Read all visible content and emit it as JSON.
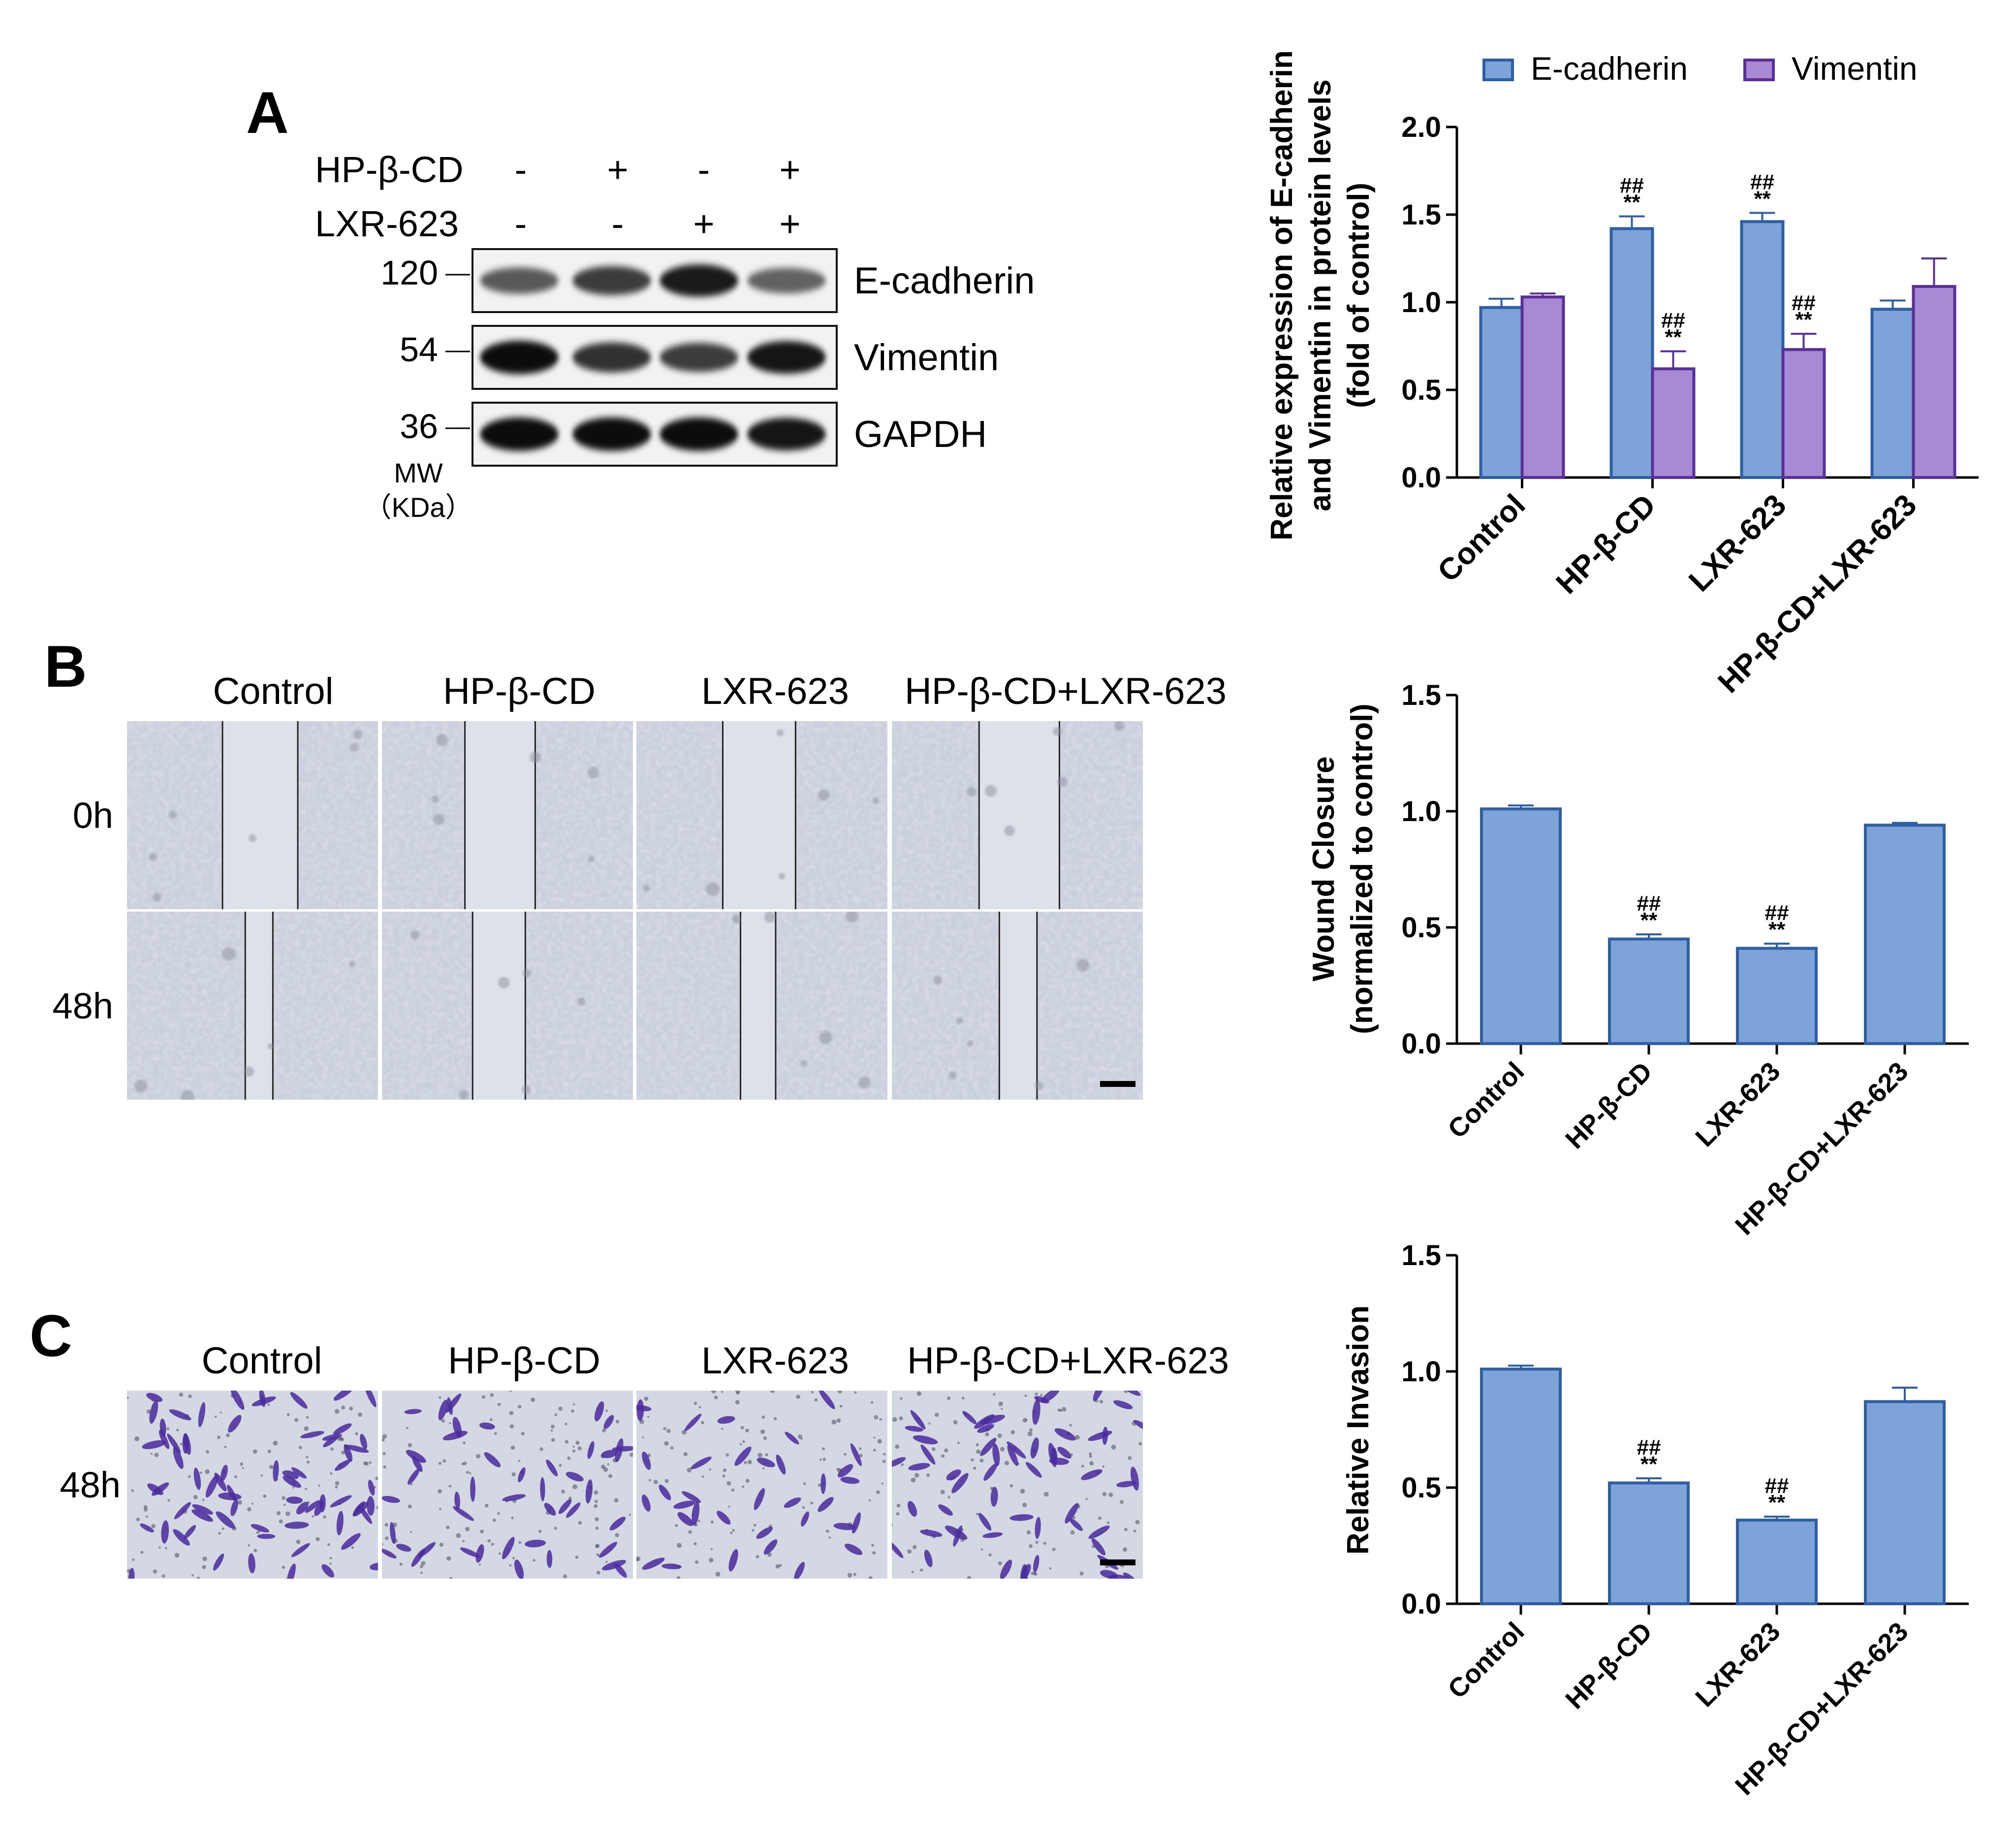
{
  "panel_labels": [
    "A",
    "B",
    "C"
  ],
  "western_blot": {
    "conditions": [
      {
        "label": "HP-β-CD",
        "signs": [
          "-",
          "+",
          "-",
          "+"
        ]
      },
      {
        "label": "LXR-623",
        "signs": [
          "-",
          "-",
          "+",
          "+"
        ]
      }
    ],
    "bands": [
      {
        "protein": "E-cadherin",
        "mw": "120",
        "intensity": [
          0.55,
          0.72,
          0.92,
          0.5
        ]
      },
      {
        "protein": "Vimentin",
        "mw": "54",
        "intensity": [
          1.0,
          0.78,
          0.72,
          0.95
        ]
      },
      {
        "protein": "GAPDH",
        "mw": "36",
        "intensity": [
          1.0,
          1.0,
          1.0,
          0.95
        ]
      }
    ],
    "mw_label": "MW",
    "kda_label": "（KDa）"
  },
  "wound_healing": {
    "column_titles": [
      "Control",
      "HP-β-CD",
      "LXR-623",
      "HP-β-CD+LXR-623"
    ],
    "row_labels": [
      "0h",
      "48h"
    ],
    "gap_fraction": [
      [
        0.3,
        0.28,
        0.29,
        0.32
      ],
      [
        0.11,
        0.21,
        0.14,
        0.15
      ]
    ]
  },
  "invasion": {
    "column_titles": [
      "Control",
      "HP-β-CD",
      "LXR-623",
      "HP-β-CD+LXR-623"
    ],
    "row_label": "48h"
  },
  "colors": {
    "ecad_fill": "#7ea3d8",
    "ecad_stroke": "#2e5fa4",
    "vim_fill": "#a88ad4",
    "vim_stroke": "#5a2f96",
    "micro_bg": "#cdd3dd",
    "stain": "#4a2a9c"
  },
  "chart_data": [
    {
      "type": "bar",
      "categories": [
        "Control",
        "HP-β-CD",
        "LXR-623",
        "HP-β-CD+LXR-623"
      ],
      "series": [
        {
          "name": "E-cadherin",
          "values": [
            0.97,
            1.42,
            1.46,
            0.96
          ],
          "errors": [
            0.05,
            0.07,
            0.05,
            0.05
          ]
        },
        {
          "name": "Vimentin",
          "values": [
            1.03,
            0.62,
            0.73,
            1.09
          ],
          "errors": [
            0.02,
            0.1,
            0.09,
            0.16
          ]
        }
      ],
      "annotations": [
        {
          "series": 0,
          "category": 1,
          "lines": [
            "##",
            "**"
          ]
        },
        {
          "series": 1,
          "category": 1,
          "lines": [
            "##",
            "**"
          ]
        },
        {
          "series": 0,
          "category": 2,
          "lines": [
            "##",
            "**"
          ]
        },
        {
          "series": 1,
          "category": 2,
          "lines": [
            "##",
            "**"
          ]
        }
      ],
      "ylabel_lines": [
        "Relative expression of E-cadherin",
        "and Vimentin in protein levels",
        "(fold of control)"
      ],
      "yticks": [
        "0.0",
        "0.5",
        "1.0",
        "1.5",
        "2.0"
      ],
      "ylim": [
        0,
        2.0
      ],
      "legend": "top"
    },
    {
      "type": "bar",
      "categories": [
        "Control",
        "HP-β-CD",
        "LXR-623",
        "HP-β-CD+LXR-623"
      ],
      "series": [
        {
          "values": [
            1.01,
            0.45,
            0.41,
            0.94
          ],
          "errors": [
            0.015,
            0.02,
            0.02,
            0.01
          ]
        }
      ],
      "annotations": [
        {
          "series": 0,
          "category": 1,
          "lines": [
            "##",
            "**"
          ]
        },
        {
          "series": 0,
          "category": 2,
          "lines": [
            "##",
            "**"
          ]
        }
      ],
      "ylabel_lines": [
        "Wound Closure",
        "(normalized to control)"
      ],
      "yticks": [
        "0.0",
        "0.5",
        "1.0",
        "1.5"
      ],
      "ylim": [
        0,
        1.5
      ]
    },
    {
      "type": "bar",
      "categories": [
        "Control",
        "HP-β-CD",
        "LXR-623",
        "HP-β-CD+LXR-623"
      ],
      "series": [
        {
          "values": [
            1.01,
            0.52,
            0.36,
            0.87
          ],
          "errors": [
            0.015,
            0.02,
            0.015,
            0.06
          ]
        }
      ],
      "annotations": [
        {
          "series": 0,
          "category": 1,
          "lines": [
            "##",
            "**"
          ]
        },
        {
          "series": 0,
          "category": 2,
          "lines": [
            "##",
            "**"
          ]
        }
      ],
      "ylabel_lines": [
        "Relative Invasion"
      ],
      "yticks": [
        "0.0",
        "0.5",
        "1.0",
        "1.5"
      ],
      "ylim": [
        0,
        1.5
      ]
    }
  ]
}
